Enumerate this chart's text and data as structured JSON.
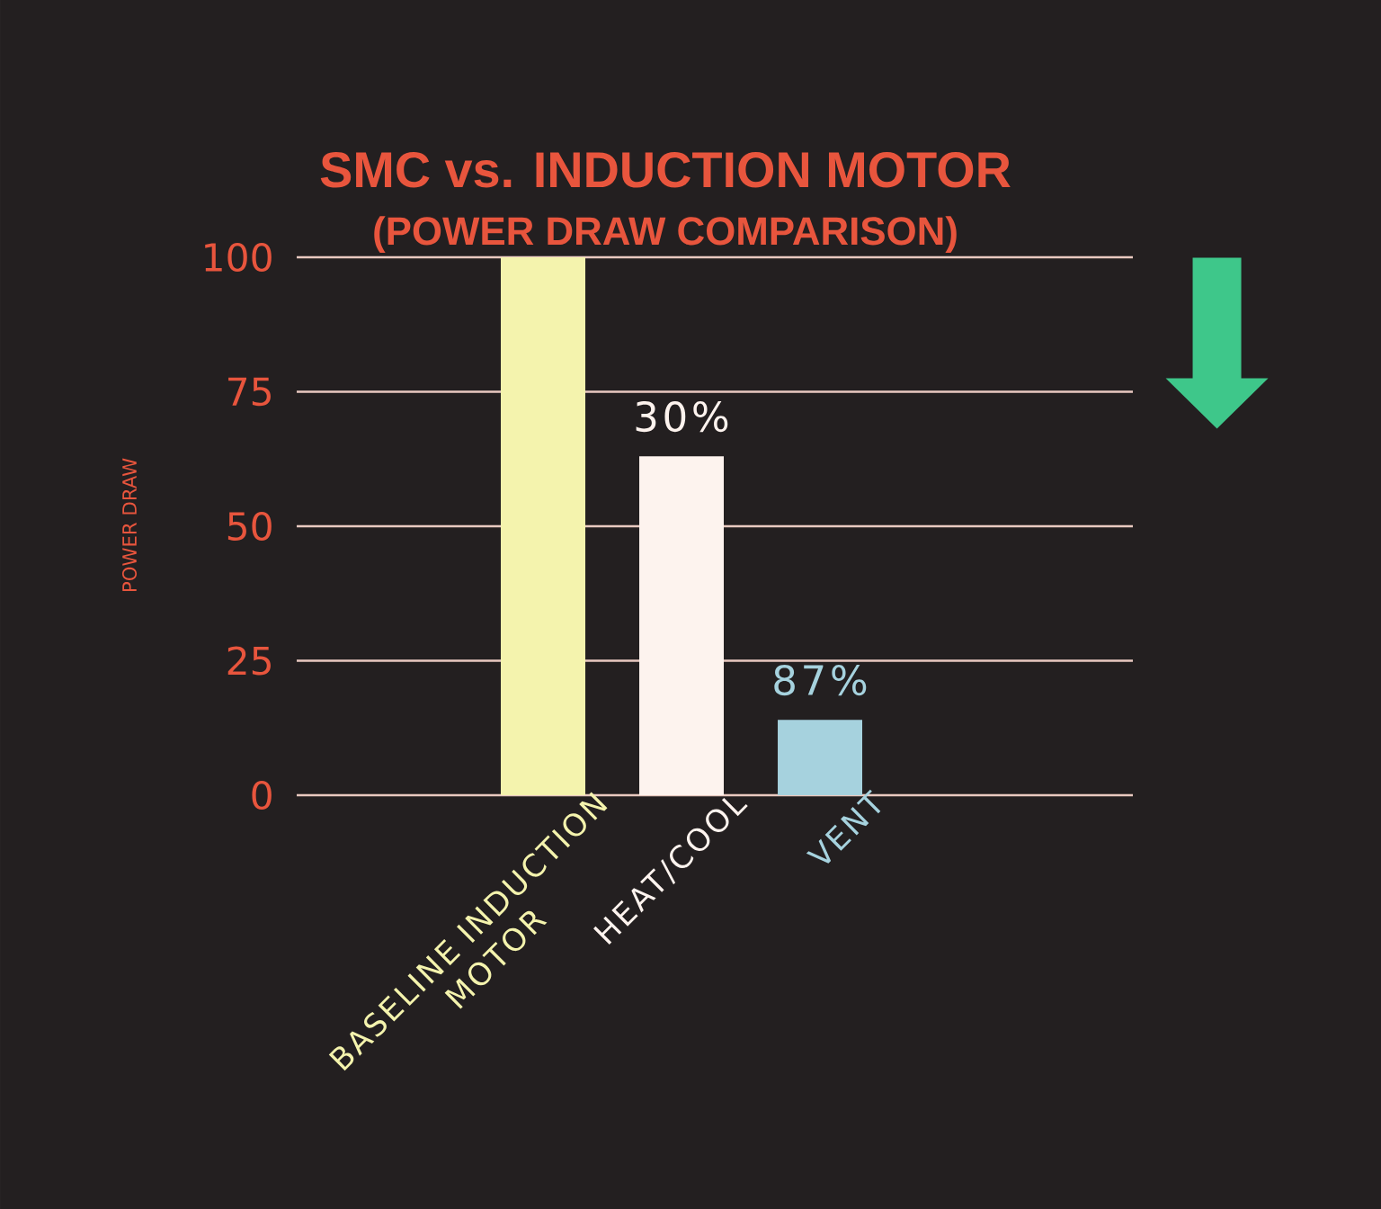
{
  "chart_data": {
    "type": "bar",
    "title": "SMC vs. INDUCTION MOTOR",
    "subtitle": "(POWER DRAW COMPARISON)",
    "ylabel": "POWER DRAW",
    "categories": [
      "BASELINE INDUCTION MOTOR",
      "HEAT/COOL",
      "VENT"
    ],
    "values": [
      100,
      63,
      14
    ],
    "colors": [
      "#f4f3ad",
      "#fdf3ee",
      "#a6d2de"
    ],
    "annotations": [
      {
        "text": "30%",
        "x": "HEAT/COOL",
        "y": 63
      },
      {
        "text": "87%",
        "x": "VENT",
        "y": 14
      }
    ],
    "ylim": [
      0,
      100
    ],
    "yticks": [
      0,
      25,
      50,
      75,
      100
    ],
    "grid": "y"
  }
}
